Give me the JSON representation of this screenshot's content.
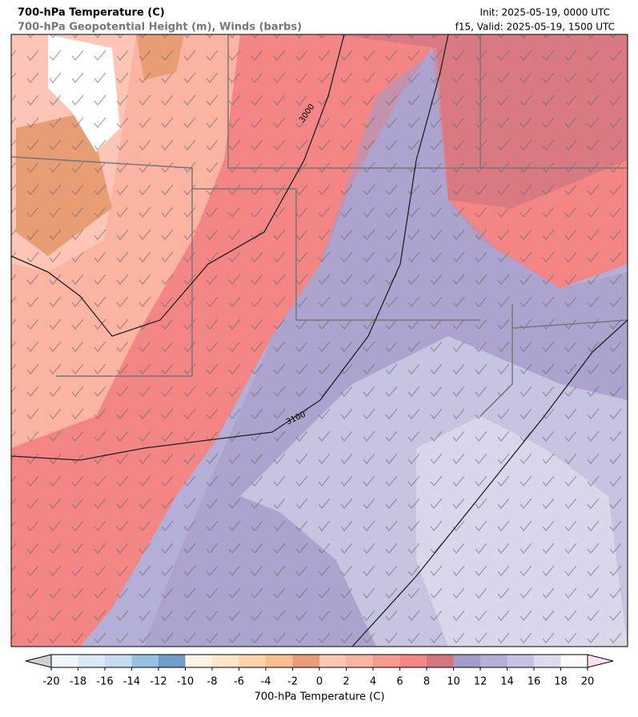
{
  "header": {
    "title": "700-hPa Temperature (C)",
    "subtitle": "700-hPa Geopotential Height (m), Winds (barbs)",
    "init": "Init: 2025-05-19, 0000 UTC",
    "valid": "f15, Valid: 2025-05-19, 1500 UTC"
  },
  "map": {
    "contour_labels": [
      "3000",
      "3100"
    ]
  },
  "colorbar": {
    "label": "700-hPa Temperature (C)",
    "ticks": [
      -20,
      -18,
      -16,
      -14,
      -12,
      -10,
      -8,
      -6,
      -4,
      -2,
      0,
      2,
      4,
      6,
      8,
      10,
      12,
      14,
      16,
      18,
      20
    ],
    "colors": [
      "#f0f6fb",
      "#dbe9f5",
      "#c6dcee",
      "#94c2e0",
      "#6e9ec8",
      "#fff3e8",
      "#ffe5cc",
      "#fdd3a8",
      "#fbbd8e",
      "#e99d75",
      "#fcc5b6",
      "#fbb3a2",
      "#f99a8e",
      "#f38585",
      "#d27782",
      "#a69bc9",
      "#b4afd7",
      "#c7c4e2",
      "#dddcec",
      "#fbfbfd"
    ],
    "under_color": "#d0d0d0",
    "over_color": "#fbe0f0"
  }
}
